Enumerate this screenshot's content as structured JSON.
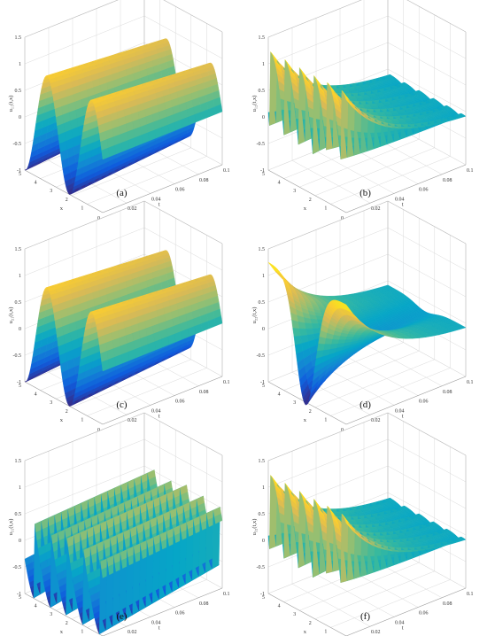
{
  "figure": {
    "panels": [
      {
        "letter": "a",
        "caption": "(a)",
        "zlabel": "u₁₁(t,x)"
      },
      {
        "letter": "b",
        "caption": "(b)",
        "zlabel": "u₁₂(t,x)"
      },
      {
        "letter": "c",
        "caption": "(c)",
        "zlabel": "u₂₁(t,x)"
      },
      {
        "letter": "d",
        "caption": "(d)",
        "zlabel": "u₂₂(t,x)"
      },
      {
        "letter": "e",
        "caption": "(e)",
        "zlabel": "u₃₁(t,x)"
      },
      {
        "letter": "f",
        "caption": "(f)",
        "zlabel": "u₃₂(t,x)"
      }
    ]
  },
  "chart_data": [
    {
      "type": "surface",
      "panel": "a",
      "xlabel": "x",
      "ylabel": "t",
      "zlabel": "u₁₁(t,x)",
      "x_range": [
        0,
        5
      ],
      "t_range": [
        0,
        0.1
      ],
      "z_range": [
        -1,
        1.5
      ],
      "x_ticks": [
        "0",
        "1",
        "2",
        "3",
        "4",
        "5"
      ],
      "t_ticks": [
        "0",
        "0.02",
        "0.04",
        "0.06",
        "0.08",
        "0.1"
      ],
      "z_ticks": [
        "-1",
        "-0.5",
        "0",
        "0.5",
        "1",
        "1.5"
      ],
      "function": "u = sin(2.2 x) sampled on the surface; nearly constant in t",
      "colormap": "parula",
      "grid": true
    },
    {
      "type": "surface",
      "panel": "b",
      "xlabel": "x",
      "ylabel": "t",
      "zlabel": "u₁₂(t,x)",
      "x_range": [
        0,
        5
      ],
      "t_range": [
        0,
        0.1
      ],
      "z_range": [
        -1,
        1.5
      ],
      "x_ticks": [
        "0",
        "1",
        "2",
        "3",
        "4",
        "5"
      ],
      "t_ticks": [
        "0",
        "0.02",
        "0.04",
        "0.06",
        "0.08",
        "0.1"
      ],
      "z_ticks": [
        "-1",
        "-0.5",
        "0",
        "0.5",
        "1",
        "1.5"
      ],
      "function": "u = 1.25·exp(-30t) periodic sawtooth in x (3 dips at t=0) decaying toward 0",
      "colormap": "parula",
      "grid": true
    },
    {
      "type": "surface",
      "panel": "c",
      "xlabel": "x",
      "ylabel": "t",
      "zlabel": "u₂₁(t,x)",
      "x_range": [
        0,
        5
      ],
      "t_range": [
        0,
        0.1
      ],
      "z_range": [
        -1,
        1.5
      ],
      "x_ticks": [
        "0",
        "1",
        "2",
        "3",
        "4",
        "5"
      ],
      "t_ticks": [
        "0",
        "0.02",
        "0.04",
        "0.06",
        "0.08",
        "0.1"
      ],
      "z_ticks": [
        "-1",
        "-0.5",
        "0",
        "0.5",
        "1",
        "1.5"
      ],
      "function": "u = sin(2.2 x) nearly constant in t",
      "colormap": "parula",
      "grid": true
    },
    {
      "type": "surface",
      "panel": "d",
      "xlabel": "x",
      "ylabel": "t",
      "zlabel": "u₂₂(t,x)",
      "x_range": [
        0,
        5
      ],
      "t_range": [
        0,
        0.1
      ],
      "z_range": [
        -1,
        1.5
      ],
      "x_ticks": [
        "0",
        "1",
        "2",
        "3",
        "4",
        "5"
      ],
      "t_ticks": [
        "0",
        "0.02",
        "0.04",
        "0.06",
        "0.08",
        "0.1"
      ],
      "z_ticks": [
        "-1",
        "-0.5",
        "0",
        "0.5",
        "1",
        "1.5"
      ],
      "function": "u = 1.25·exp(-30t) single wide dip (min ≈ -1 near x=2.5 at t=0) decaying",
      "colormap": "parula",
      "grid": true
    },
    {
      "type": "surface",
      "panel": "e",
      "xlabel": "x",
      "ylabel": "t",
      "zlabel": "u₃₁(t,x)",
      "x_range": [
        0,
        5
      ],
      "t_range": [
        0,
        0.1
      ],
      "z_range": [
        -1,
        1.5
      ],
      "x_ticks": [
        "0",
        "1",
        "2",
        "3",
        "4",
        "5"
      ],
      "t_ticks": [
        "0",
        "0.02",
        "0.04",
        "0.06",
        "0.08",
        "0.1"
      ],
      "z_ticks": [
        "-1",
        "-0.5",
        "0",
        "0.5",
        "1",
        "1.5"
      ],
      "function": "u = sawtooth in x (4 dips) nearly constant in t",
      "colormap": "parula",
      "grid": true
    },
    {
      "type": "surface",
      "panel": "f",
      "xlabel": "x",
      "ylabel": "t",
      "zlabel": "u₃₂(t,x)",
      "x_range": [
        0,
        5
      ],
      "t_range": [
        0,
        0.1
      ],
      "z_range": [
        -1,
        1.5
      ],
      "x_ticks": [
        "0",
        "1",
        "2",
        "3",
        "4",
        "5"
      ],
      "t_ticks": [
        "0",
        "0.02",
        "0.04",
        "0.06",
        "0.08",
        "0.1"
      ],
      "z_ticks": [
        "-1",
        "-0.5",
        "0",
        "0.5",
        "1",
        "1.5"
      ],
      "function": "u = 1.25·exp(-30t) periodic sawtooth in x (3 dips at t=0) decaying toward 0",
      "colormap": "parula",
      "grid": true
    }
  ]
}
